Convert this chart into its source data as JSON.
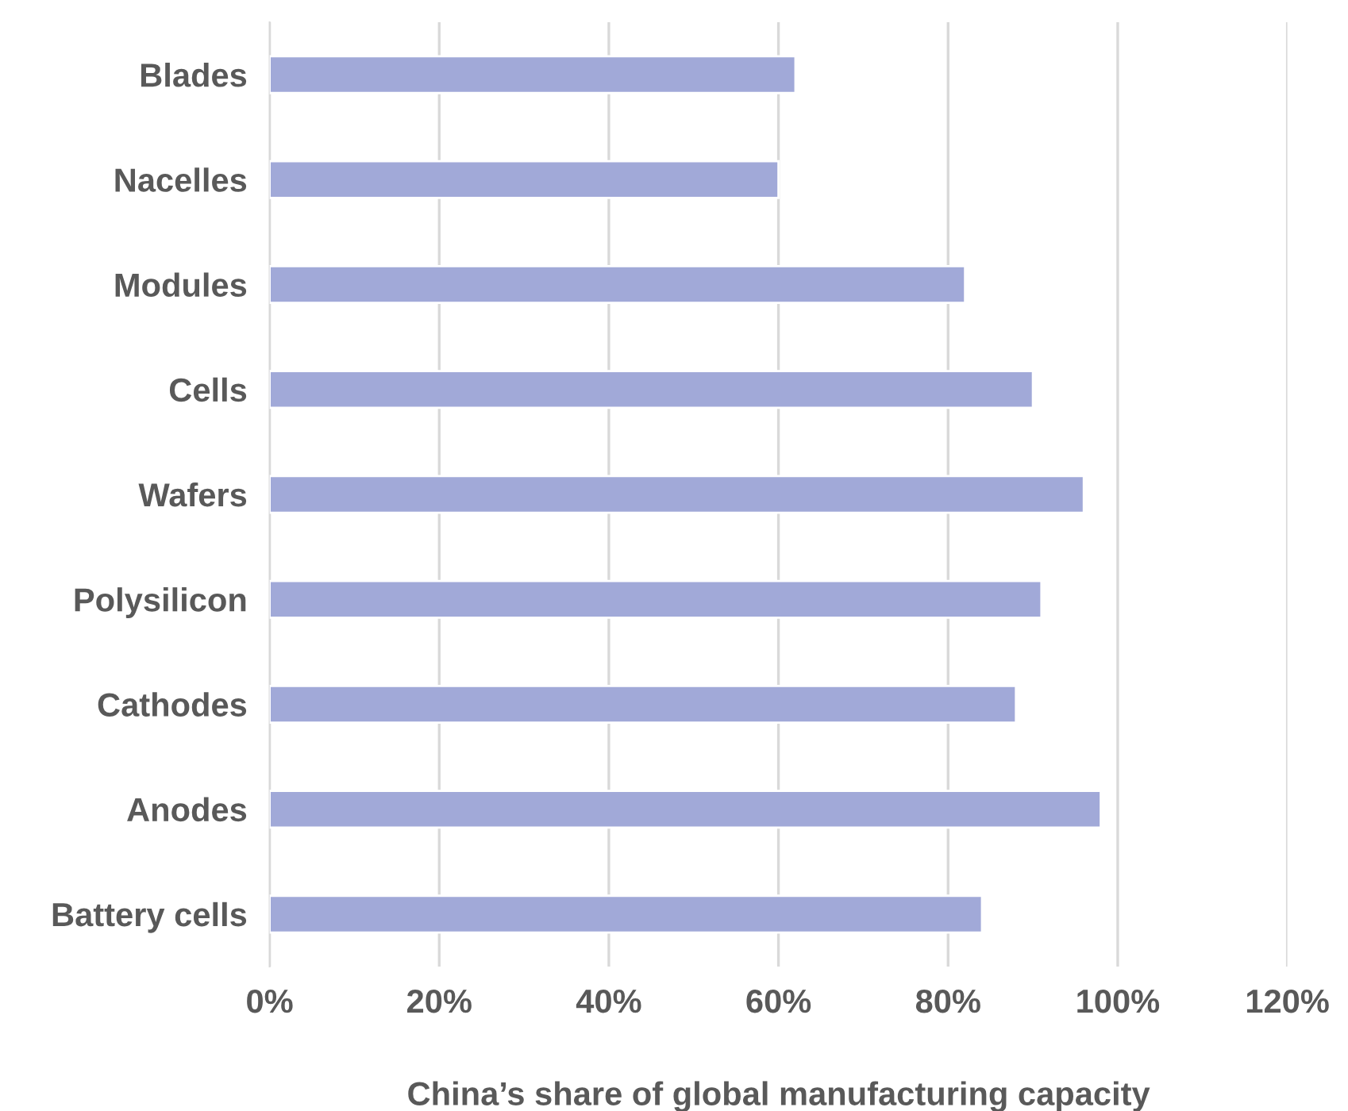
{
  "chart_data": {
    "type": "bar",
    "orientation": "horizontal",
    "xlabel": "China’s share of global manufacturing capacity",
    "categories": [
      "Blades",
      "Nacelles",
      "Modules",
      "Cells",
      "Wafers",
      "Polysilicon",
      "Cathodes",
      "Anodes",
      "Battery cells"
    ],
    "values": [
      62,
      60,
      82,
      90,
      96,
      91,
      88,
      98,
      84
    ],
    "color": "#a1a9d8",
    "xlim": [
      0,
      120
    ],
    "xticks": [
      {
        "value": 0,
        "label": "0%"
      },
      {
        "value": 20,
        "label": "20%"
      },
      {
        "value": 40,
        "label": "40%"
      },
      {
        "value": 60,
        "label": "60%"
      },
      {
        "value": 80,
        "label": "80%"
      },
      {
        "value": 100,
        "label": "100%"
      },
      {
        "value": 120,
        "label": "120%"
      }
    ],
    "grid": "x",
    "legend": false
  }
}
